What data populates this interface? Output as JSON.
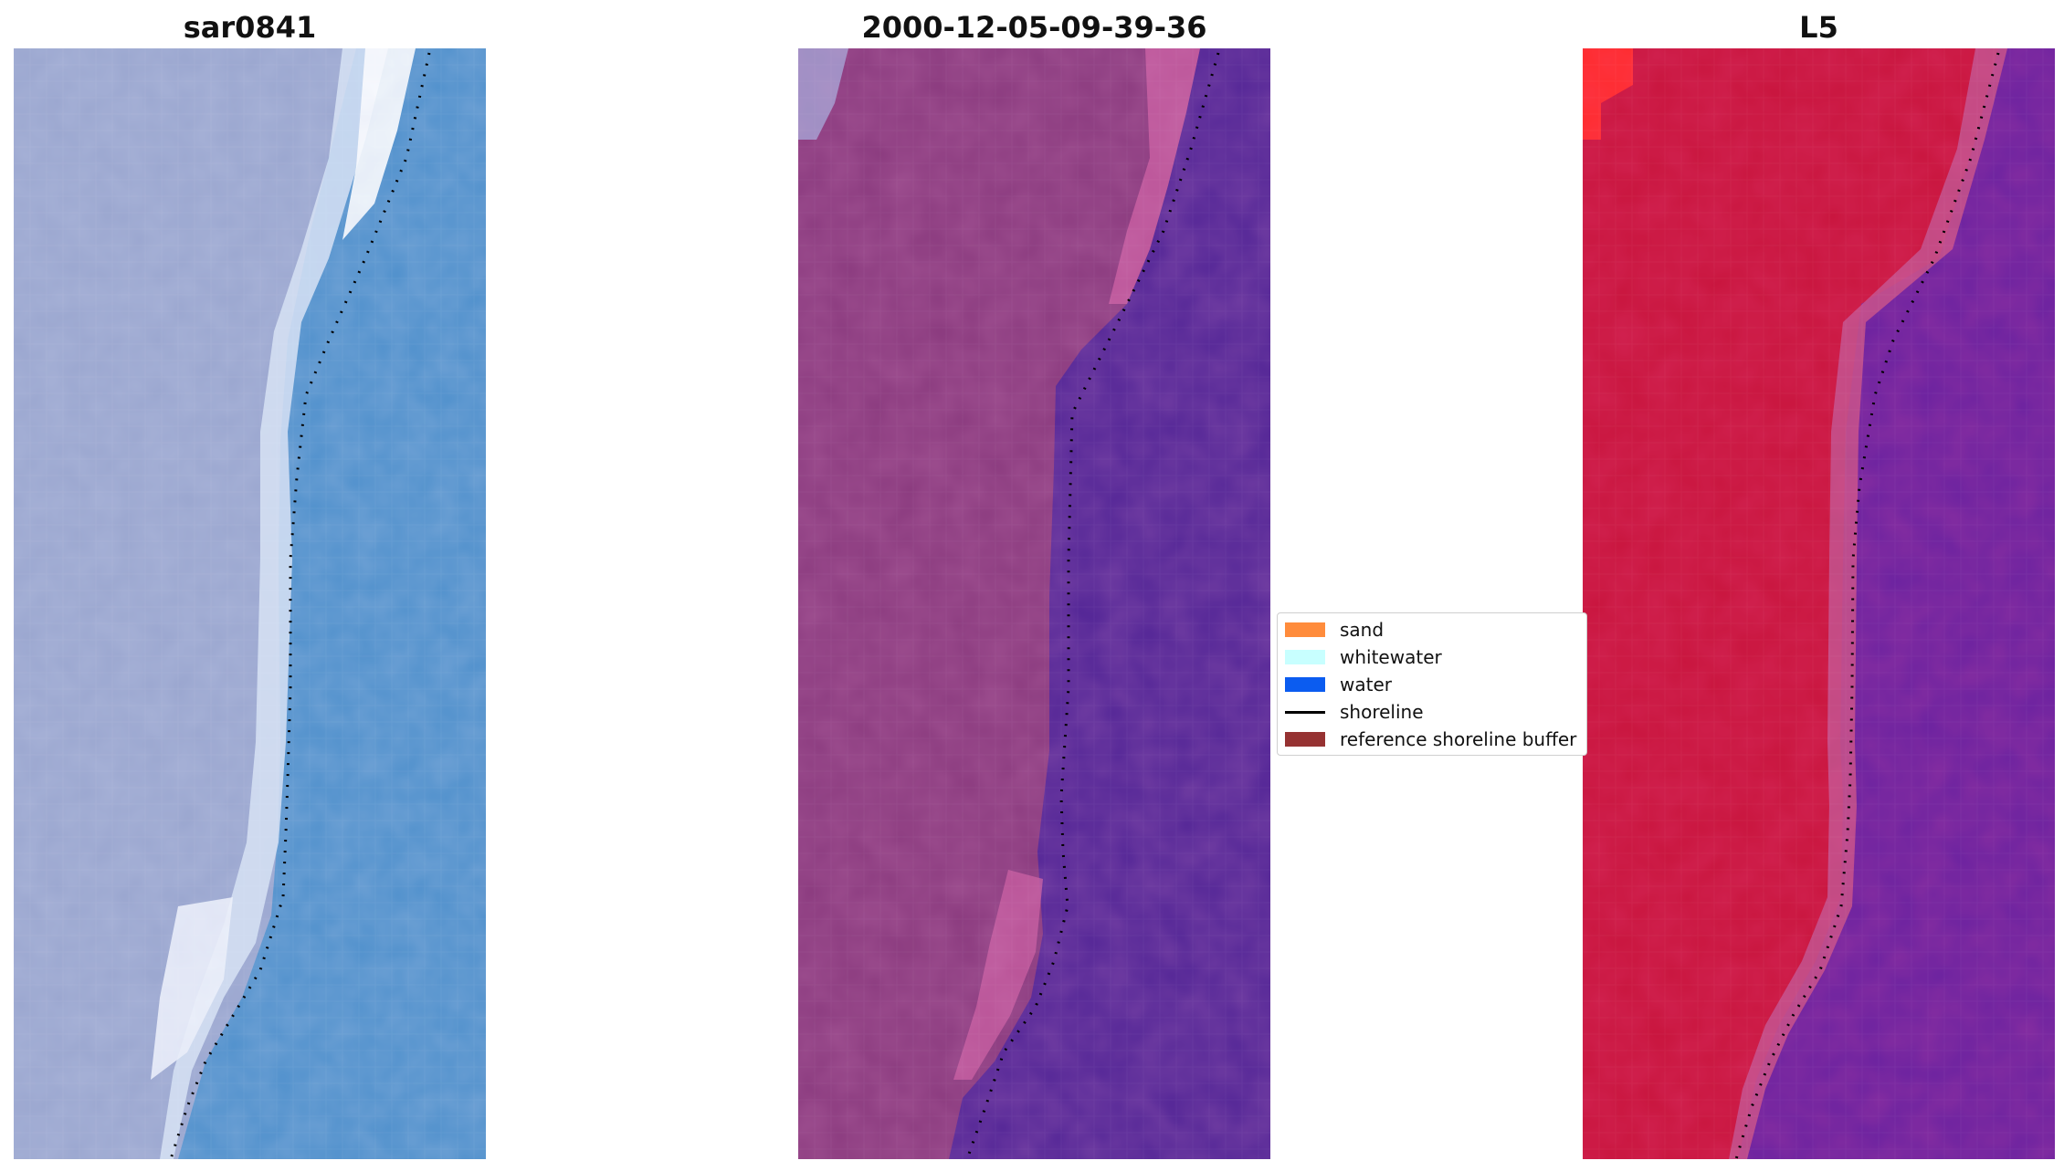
{
  "panels": [
    {
      "title": "sar0841"
    },
    {
      "title": "2000-12-05-09-39-36"
    },
    {
      "title": "L5"
    }
  ],
  "legend": {
    "items": [
      {
        "label": "sand",
        "color": "#ff8c3c",
        "kind": "patch"
      },
      {
        "label": "whitewater",
        "color": "#c8ffff",
        "kind": "patch"
      },
      {
        "label": "water",
        "color": "#0b5cf0",
        "kind": "patch"
      },
      {
        "label": "shoreline",
        "color": "#000000",
        "kind": "line"
      },
      {
        "label": "reference shoreline buffer",
        "color": "#963232",
        "kind": "patch"
      }
    ]
  },
  "colors": {
    "rgb_land": "#9aa6cf",
    "rgb_water": "#4f90cc",
    "swir_land": "#8a3a7e",
    "swir_water": "#522596",
    "ndwi_land": "#c8143c",
    "ndwi_water": "#6a22a0",
    "shoreline_dots": "#000000"
  }
}
